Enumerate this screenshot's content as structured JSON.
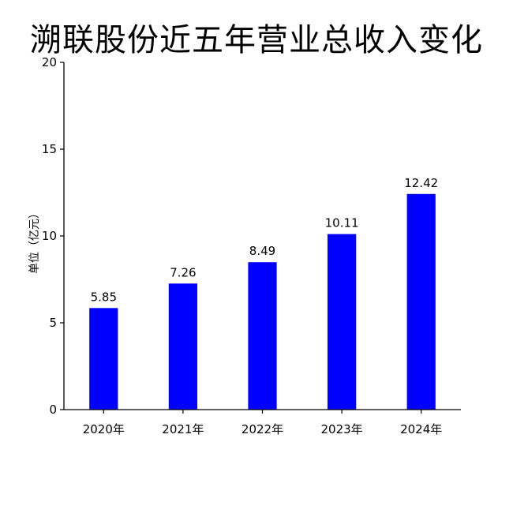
{
  "chart_data": {
    "type": "bar",
    "title": "溯联股份近五年营业总收入变化",
    "xlabel": "",
    "ylabel": "单位（亿元）",
    "categories": [
      "2020年",
      "2021年",
      "2022年",
      "2023年",
      "2024年"
    ],
    "values": [
      5.85,
      7.26,
      8.49,
      10.11,
      12.42
    ],
    "value_labels": [
      "5.85",
      "7.26",
      "8.49",
      "10.11",
      "12.42"
    ],
    "ylim": [
      0,
      20
    ],
    "yticks": [
      "0",
      "5",
      "10",
      "15",
      "20"
    ],
    "grid": false,
    "legend": "none",
    "bar_color": "#0000ff"
  }
}
